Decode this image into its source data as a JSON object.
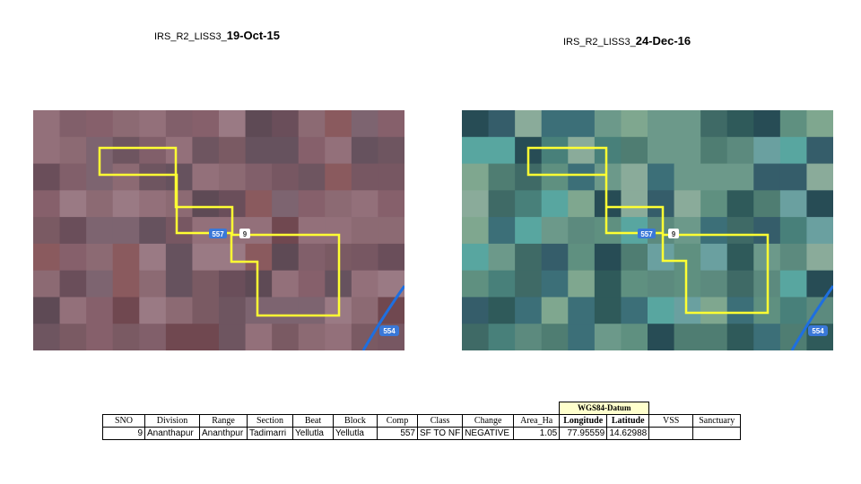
{
  "left_panel": {
    "title_prefix": "IRS_R2_LISS3_",
    "title_date": "19-Oct-15",
    "label_557": "557",
    "label_9": "9",
    "label_554": "554"
  },
  "right_panel": {
    "title_prefix": "IRS_R2_LISS3_",
    "title_date": "24-Dec-16",
    "label_557": "557",
    "label_9": "9",
    "label_554": "554"
  },
  "table": {
    "group_header": "WGS84-Datum",
    "headers": {
      "sno": "SNO",
      "division": "Division",
      "range": "Range",
      "section": "Section",
      "beat": "Beat",
      "block": "Block",
      "comp": "Comp",
      "class": "Class",
      "change": "Change",
      "area": "Area_Ha",
      "longitude": "Longitude",
      "latitude": "Latitude",
      "vss": "VSS",
      "sanctuary": "Sanctuary"
    },
    "row": {
      "sno": "9",
      "division": "Ananthapur",
      "range": "Ananthpur",
      "section": "Tadimarri",
      "beat": "Yellutla",
      "block": "Yellutla",
      "comp": "557",
      "class": "SF TO NF",
      "change": "NEGATIVE",
      "area": "1.05",
      "longitude": "77.95559",
      "latitude": "14.62988",
      "vss": "",
      "sanctuary": ""
    }
  },
  "colors": {
    "boundary": "#ffff33",
    "river": "#1e6fe0"
  }
}
